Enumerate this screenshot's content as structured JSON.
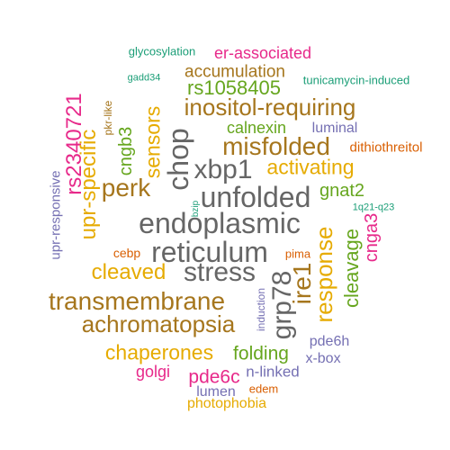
{
  "colors": {
    "teal": "#1b9e77",
    "orange": "#d95f02",
    "purple": "#7570b3",
    "magenta": "#e7298a",
    "green": "#66a61e",
    "gold": "#e6ab02",
    "brown": "#a6761d",
    "gray": "#666666"
  },
  "words": [
    {
      "text": "glycosylation"
    },
    {
      "text": "er-associated"
    },
    {
      "text": "gadd34"
    },
    {
      "text": "accumulation"
    },
    {
      "text": "tunicamycin-induced"
    },
    {
      "text": "rs1058405"
    },
    {
      "text": "inositol-requiring"
    },
    {
      "text": "pkr-like"
    },
    {
      "text": "rs2340721"
    },
    {
      "text": "cngb3"
    },
    {
      "text": "sensors"
    },
    {
      "text": "calnexin"
    },
    {
      "text": "luminal"
    },
    {
      "text": "misfolded"
    },
    {
      "text": "dithiothreitol"
    },
    {
      "text": "chop"
    },
    {
      "text": "upr-specific"
    },
    {
      "text": "xbp1"
    },
    {
      "text": "activating"
    },
    {
      "text": "upr-responsive"
    },
    {
      "text": "perk"
    },
    {
      "text": "bzip"
    },
    {
      "text": "unfolded"
    },
    {
      "text": "gnat2"
    },
    {
      "text": "1q21-q23"
    },
    {
      "text": "endoplasmic"
    },
    {
      "text": "cnga3"
    },
    {
      "text": "cebp"
    },
    {
      "text": "reticulum"
    },
    {
      "text": "pima"
    },
    {
      "text": "cleavage"
    },
    {
      "text": "response"
    },
    {
      "text": "ire1"
    },
    {
      "text": "cleaved"
    },
    {
      "text": "stress"
    },
    {
      "text": "grp78"
    },
    {
      "text": "transmembrane"
    },
    {
      "text": "induction"
    },
    {
      "text": "achromatopsia"
    },
    {
      "text": "chaperones"
    },
    {
      "text": "folding"
    },
    {
      "text": "pde6h"
    },
    {
      "text": "x-box"
    },
    {
      "text": "golgi"
    },
    {
      "text": "pde6c"
    },
    {
      "text": "n-linked"
    },
    {
      "text": "edem"
    },
    {
      "text": "lumen"
    },
    {
      "text": "photophobia"
    }
  ]
}
